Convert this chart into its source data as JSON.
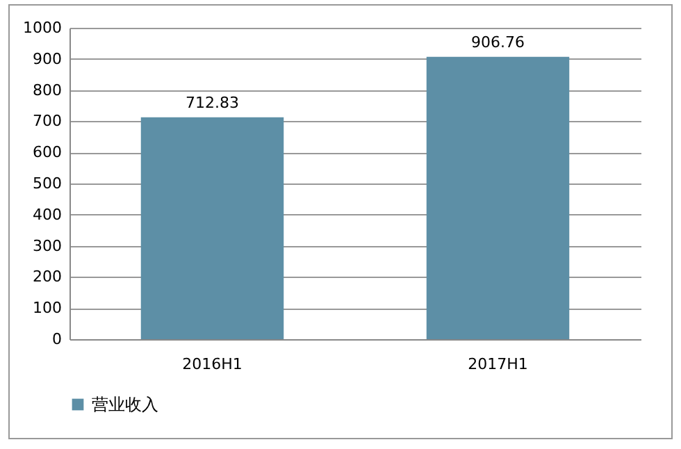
{
  "chart_data": {
    "type": "bar",
    "categories": [
      "2016H1",
      "2017H1"
    ],
    "series": [
      {
        "name": "营业收入",
        "color": "#5d8fa6",
        "values": [
          712.83,
          906.76
        ]
      }
    ],
    "ylim": [
      0,
      1000
    ],
    "yticks": [
      0,
      100,
      200,
      300,
      400,
      500,
      600,
      700,
      800,
      900,
      1000
    ],
    "grid": "y",
    "legend": "bottom",
    "data_labels": true
  }
}
